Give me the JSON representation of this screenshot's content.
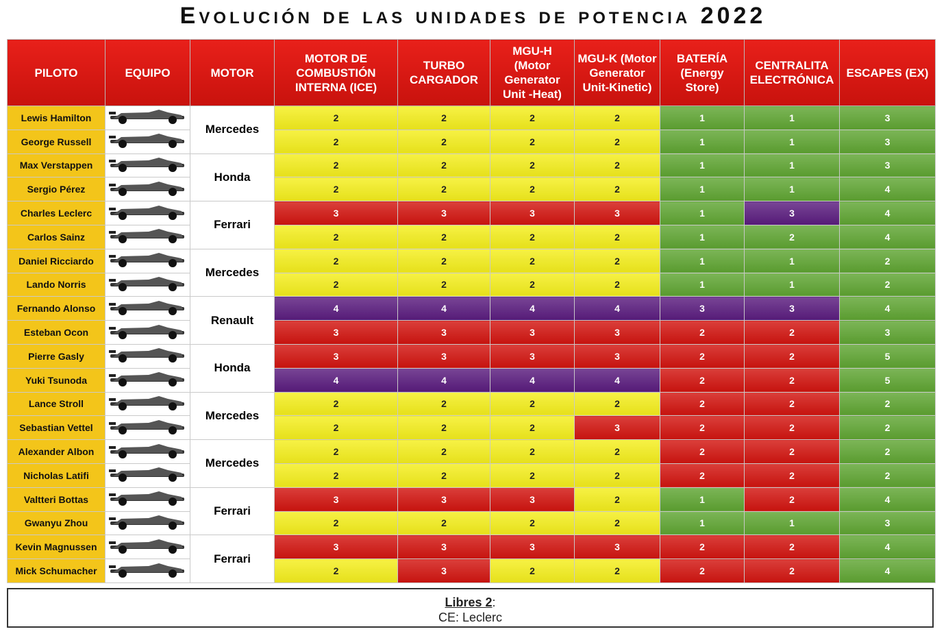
{
  "title": "Evolución de las unidades de potencia 2022",
  "palette": {
    "yellow": "#f4ee1c",
    "red": "#d2140f",
    "green": "#5fa532",
    "purple": "#5a1c7e",
    "gold": "#f3c51a"
  },
  "table": {
    "columns": [
      "PILOTO",
      "EQUIPO",
      "MOTOR",
      "MOTOR DE COMBUSTIÓN INTERNA (ICE)",
      "TURBO CARGADOR",
      "MGU-H (Motor Generator Unit -Heat)",
      "MGU-K (Motor Generator Unit-Kinetic)",
      "BATERÍA (Energy Store)",
      "CENTRALITA ELECTRÓNICA",
      "ESCAPES (EX)"
    ],
    "engines": [
      "Mercedes",
      "Honda",
      "Ferrari",
      "Mercedes",
      "Renault",
      "Honda",
      "Mercedes",
      "Mercedes",
      "Ferrari",
      "Ferrari"
    ],
    "rows": [
      {
        "driver": "Lewis Hamilton",
        "values": [
          2,
          2,
          2,
          2,
          1,
          1,
          3
        ],
        "colors": [
          "yellow",
          "yellow",
          "yellow",
          "yellow",
          "green",
          "green",
          "green"
        ]
      },
      {
        "driver": "George Russell",
        "values": [
          2,
          2,
          2,
          2,
          1,
          1,
          3
        ],
        "colors": [
          "yellow",
          "yellow",
          "yellow",
          "yellow",
          "green",
          "green",
          "green"
        ]
      },
      {
        "driver": "Max Verstappen",
        "values": [
          2,
          2,
          2,
          2,
          1,
          1,
          3
        ],
        "colors": [
          "yellow",
          "yellow",
          "yellow",
          "yellow",
          "green",
          "green",
          "green"
        ]
      },
      {
        "driver": "Sergio Pérez",
        "values": [
          2,
          2,
          2,
          2,
          1,
          1,
          4
        ],
        "colors": [
          "yellow",
          "yellow",
          "yellow",
          "yellow",
          "green",
          "green",
          "green"
        ]
      },
      {
        "driver": "Charles Leclerc",
        "values": [
          3,
          3,
          3,
          3,
          1,
          3,
          4
        ],
        "colors": [
          "red",
          "red",
          "red",
          "red",
          "green",
          "purple",
          "green"
        ]
      },
      {
        "driver": "Carlos Sainz",
        "values": [
          2,
          2,
          2,
          2,
          1,
          2,
          4
        ],
        "colors": [
          "yellow",
          "yellow",
          "yellow",
          "yellow",
          "green",
          "green",
          "green"
        ]
      },
      {
        "driver": "Daniel Ricciardo",
        "values": [
          2,
          2,
          2,
          2,
          1,
          1,
          2
        ],
        "colors": [
          "yellow",
          "yellow",
          "yellow",
          "yellow",
          "green",
          "green",
          "green"
        ]
      },
      {
        "driver": "Lando Norris",
        "values": [
          2,
          2,
          2,
          2,
          1,
          1,
          2
        ],
        "colors": [
          "yellow",
          "yellow",
          "yellow",
          "yellow",
          "green",
          "green",
          "green"
        ]
      },
      {
        "driver": "Fernando Alonso",
        "values": [
          4,
          4,
          4,
          4,
          3,
          3,
          4
        ],
        "colors": [
          "purple",
          "purple",
          "purple",
          "purple",
          "purple",
          "purple",
          "green"
        ]
      },
      {
        "driver": "Esteban Ocon",
        "values": [
          3,
          3,
          3,
          3,
          2,
          2,
          3
        ],
        "colors": [
          "red",
          "red",
          "red",
          "red",
          "red",
          "red",
          "green"
        ]
      },
      {
        "driver": "Pierre Gasly",
        "values": [
          3,
          3,
          3,
          3,
          2,
          2,
          5
        ],
        "colors": [
          "red",
          "red",
          "red",
          "red",
          "red",
          "red",
          "green"
        ]
      },
      {
        "driver": "Yuki Tsunoda",
        "values": [
          4,
          4,
          4,
          4,
          2,
          2,
          5
        ],
        "colors": [
          "purple",
          "purple",
          "purple",
          "purple",
          "red",
          "red",
          "green"
        ]
      },
      {
        "driver": "Lance Stroll",
        "values": [
          2,
          2,
          2,
          2,
          2,
          2,
          2
        ],
        "colors": [
          "yellow",
          "yellow",
          "yellow",
          "yellow",
          "red",
          "red",
          "green"
        ]
      },
      {
        "driver": "Sebastian Vettel",
        "values": [
          2,
          2,
          2,
          3,
          2,
          2,
          2
        ],
        "colors": [
          "yellow",
          "yellow",
          "yellow",
          "red",
          "red",
          "red",
          "green"
        ]
      },
      {
        "driver": "Alexander Albon",
        "values": [
          2,
          2,
          2,
          2,
          2,
          2,
          2
        ],
        "colors": [
          "yellow",
          "yellow",
          "yellow",
          "yellow",
          "red",
          "red",
          "green"
        ]
      },
      {
        "driver": "Nicholas Latifi",
        "values": [
          2,
          2,
          2,
          2,
          2,
          2,
          2
        ],
        "colors": [
          "yellow",
          "yellow",
          "yellow",
          "yellow",
          "red",
          "red",
          "green"
        ]
      },
      {
        "driver": "Valtteri Bottas",
        "values": [
          3,
          3,
          3,
          2,
          1,
          2,
          4
        ],
        "colors": [
          "red",
          "red",
          "red",
          "yellow",
          "green",
          "red",
          "green"
        ]
      },
      {
        "driver": "Gwanyu Zhou",
        "values": [
          2,
          2,
          2,
          2,
          1,
          1,
          3
        ],
        "colors": [
          "yellow",
          "yellow",
          "yellow",
          "yellow",
          "green",
          "green",
          "green"
        ]
      },
      {
        "driver": "Kevin Magnussen",
        "values": [
          3,
          3,
          3,
          3,
          2,
          2,
          4
        ],
        "colors": [
          "red",
          "red",
          "red",
          "red",
          "red",
          "red",
          "green"
        ]
      },
      {
        "driver": "Mick Schumacher",
        "values": [
          2,
          3,
          2,
          2,
          2,
          2,
          4
        ],
        "colors": [
          "yellow",
          "red",
          "yellow",
          "yellow",
          "red",
          "red",
          "green"
        ]
      }
    ]
  },
  "footer": {
    "heading": "Libres 2",
    "punctuation": ":",
    "note": "CE: Leclerc"
  }
}
